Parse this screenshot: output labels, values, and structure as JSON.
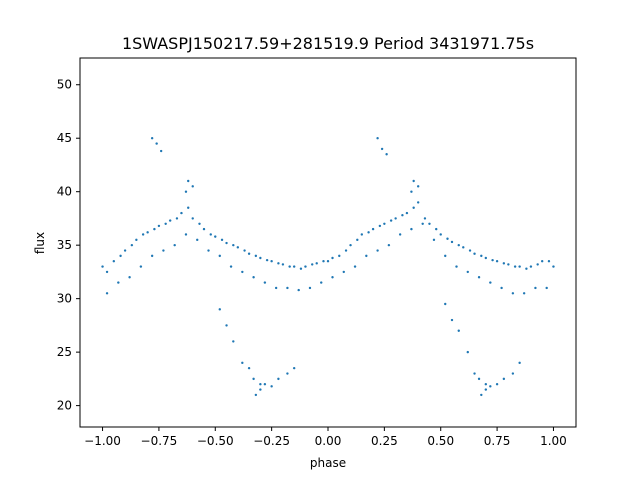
{
  "chart_data": {
    "type": "scatter",
    "title": "1SWASPJ150217.59+281519.9 Period 3431971.75s",
    "xlabel": "phase",
    "ylabel": "flux",
    "xlim": [
      -1.1,
      1.1
    ],
    "ylim": [
      18.0,
      52.5
    ],
    "xticks": [
      -1.0,
      -0.75,
      -0.5,
      -0.25,
      0.0,
      0.25,
      0.5,
      0.75,
      1.0
    ],
    "xtick_labels": [
      "−1.00",
      "−0.75",
      "−0.50",
      "−0.25",
      "0.00",
      "0.25",
      "0.50",
      "0.75",
      "1.00"
    ],
    "yticks": [
      20,
      25,
      30,
      35,
      40,
      45,
      50
    ],
    "ytick_labels": [
      "20",
      "25",
      "30",
      "35",
      "40",
      "45",
      "50"
    ],
    "grid": false,
    "legend": "none",
    "marker_color": "#1f77b4",
    "series": [
      {
        "x": [
          -1.0,
          -0.98,
          -0.95,
          -0.92,
          -0.9,
          -0.87,
          -0.85,
          -0.82,
          -0.8,
          -0.77,
          -0.75,
          -0.72,
          -0.7,
          -0.67,
          -0.65,
          -0.62,
          -0.6,
          -0.57,
          -0.55,
          -0.52,
          -0.5,
          -0.47,
          -0.45,
          -0.42,
          -0.4,
          -0.37,
          -0.35,
          -0.32,
          -0.3,
          -0.27,
          -0.25,
          -0.22,
          -0.2,
          -0.17,
          -0.15,
          -0.12,
          -0.1,
          -0.07,
          -0.05,
          -0.02,
          0.0,
          0.02,
          0.05,
          0.08,
          0.1,
          0.13,
          0.15,
          0.18,
          0.2,
          0.23,
          0.25,
          0.28,
          0.3,
          0.33,
          0.35,
          0.38,
          0.4,
          0.43,
          0.45,
          0.48,
          0.5,
          0.53,
          0.55,
          0.58,
          0.6,
          0.63,
          0.65,
          0.68,
          0.7,
          0.73,
          0.75,
          0.78,
          0.8,
          0.83,
          0.85,
          0.88,
          0.9,
          0.93,
          0.95,
          0.98,
          1.0,
          -0.98,
          -0.93,
          -0.88,
          -0.83,
          -0.78,
          -0.73,
          -0.68,
          -0.63,
          -0.58,
          -0.53,
          -0.48,
          -0.43,
          -0.38,
          -0.33,
          -0.28,
          -0.23,
          -0.18,
          -0.13,
          -0.08,
          -0.03,
          0.02,
          0.07,
          0.12,
          0.17,
          0.22,
          0.27,
          0.32,
          0.37,
          0.42,
          0.47,
          0.52,
          0.57,
          0.62,
          0.67,
          0.72,
          0.77,
          0.82,
          0.87,
          0.92,
          0.97,
          -0.78,
          -0.76,
          -0.74,
          -0.48,
          -0.45,
          -0.42,
          -0.38,
          -0.35,
          -0.33,
          -0.3,
          -0.28,
          -0.25,
          -0.22,
          -0.18,
          -0.15,
          0.22,
          0.24,
          0.26,
          0.52,
          0.55,
          0.58,
          0.62,
          0.65,
          0.67,
          0.7,
          0.72,
          0.75,
          0.78,
          0.82,
          0.85,
          -0.62,
          -0.63,
          -0.6,
          -0.3,
          -0.32,
          0.38,
          0.37,
          0.4,
          0.7,
          0.68
        ],
        "y": [
          33.0,
          32.5,
          33.5,
          34.0,
          34.5,
          35.0,
          35.5,
          36.0,
          36.2,
          36.5,
          36.8,
          37.0,
          37.3,
          37.5,
          38.0,
          38.5,
          37.5,
          37.0,
          36.5,
          36.0,
          35.8,
          35.5,
          35.2,
          35.0,
          34.8,
          34.5,
          34.2,
          34.0,
          33.8,
          33.6,
          33.5,
          33.3,
          33.2,
          33.0,
          33.0,
          32.8,
          33.0,
          33.2,
          33.3,
          33.5,
          33.5,
          33.8,
          34.0,
          34.5,
          35.0,
          35.5,
          36.0,
          36.2,
          36.5,
          36.8,
          37.0,
          37.3,
          37.5,
          37.8,
          38.0,
          38.5,
          39.0,
          37.5,
          37.0,
          36.5,
          36.0,
          35.6,
          35.3,
          35.0,
          34.8,
          34.5,
          34.2,
          34.0,
          33.8,
          33.6,
          33.5,
          33.3,
          33.2,
          33.0,
          33.0,
          32.8,
          33.0,
          33.2,
          33.5,
          33.5,
          33.0,
          30.5,
          31.5,
          32.0,
          33.0,
          34.0,
          34.5,
          35.0,
          36.0,
          35.5,
          34.5,
          34.0,
          33.0,
          32.5,
          32.0,
          31.5,
          31.0,
          31.0,
          30.8,
          31.0,
          31.5,
          32.0,
          32.5,
          33.0,
          34.0,
          34.5,
          35.0,
          36.0,
          36.5,
          37.0,
          35.5,
          34.0,
          33.0,
          32.5,
          32.0,
          31.5,
          31.0,
          30.5,
          30.5,
          31.0,
          31.0,
          45.0,
          44.5,
          43.8,
          29.0,
          27.5,
          26.0,
          24.0,
          23.5,
          22.5,
          22.0,
          22.0,
          21.8,
          22.5,
          23.0,
          23.5,
          45.0,
          44.0,
          43.5,
          29.5,
          28.0,
          27.0,
          25.0,
          23.0,
          22.5,
          22.0,
          21.8,
          22.0,
          22.5,
          23.0,
          24.0,
          41.0,
          40.0,
          40.5,
          21.5,
          21.0,
          41.0,
          40.0,
          40.5,
          21.5,
          21.0
        ]
      }
    ]
  }
}
